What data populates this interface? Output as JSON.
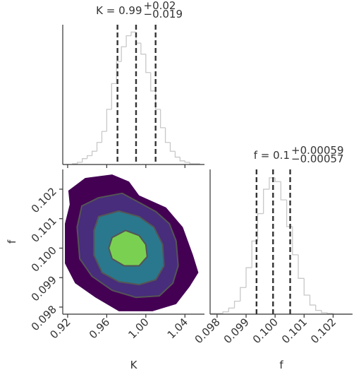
{
  "chart_data": [
    {
      "type": "histogram",
      "title": "K = 0.99",
      "title_upper": "+0.02",
      "title_lower": "−0.019",
      "bins": [
        0.925,
        0.93,
        0.935,
        0.94,
        0.945,
        0.95,
        0.955,
        0.96,
        0.965,
        0.97,
        0.975,
        0.98,
        0.985,
        0.99,
        0.995,
        1.0,
        1.005,
        1.01,
        1.015,
        1.02,
        1.025,
        1.03,
        1.035,
        1.04,
        1.045,
        1.05,
        1.055
      ],
      "values": [
        1,
        3,
        8,
        12,
        18,
        30,
        45,
        75,
        110,
        140,
        160,
        175,
        180,
        165,
        150,
        125,
        100,
        75,
        50,
        30,
        18,
        10,
        5,
        3,
        1,
        1
      ],
      "color": "#c8c8c8",
      "quantiles": [
        0.971,
        0.99,
        1.01
      ],
      "quantile_color": "#333333",
      "xlim": [
        0.915,
        1.06
      ],
      "ylim": [
        0,
        190
      ],
      "xticks": [
        0.92,
        0.96,
        1,
        1.04
      ]
    },
    {
      "type": "contour",
      "xlabel": "K",
      "ylabel": "f",
      "xlim": [
        0.915,
        1.06
      ],
      "ylim": [
        0.09776,
        0.10267
      ],
      "xticks": [
        0.92,
        0.96,
        {
          "value": 1,
          "label": "1.00"
        },
        1.04
      ],
      "yticks": [
        0.098,
        0.099,
        {
          "value": 0.1,
          "label": "0.100"
        },
        0.101,
        0.102
      ],
      "line_color": "#555555",
      "levels": [
        {
          "color": "#440154",
          "x": [
            0.9207,
            0.9379,
            0.9655,
            0.9828,
            0.9931,
            1.0207,
            1.0379,
            1.0483,
            1.0538,
            1.0448,
            1.031,
            1.0069,
            0.9724,
            0.9483,
            0.9276,
            0.9172,
            0.9172,
            0.9221
          ],
          "y": [
            0.10195,
            0.10238,
            0.1025,
            0.10226,
            0.10179,
            0.10138,
            0.10071,
            0.09976,
            0.09917,
            0.09869,
            0.0981,
            0.09786,
            0.09786,
            0.09833,
            0.09881,
            0.09948,
            0.10083,
            0.10148
          ]
        },
        {
          "color": "#472d7b",
          "x": [
            0.9345,
            0.9517,
            0.9759,
            0.9931,
            1.0103,
            1.0241,
            1.031,
            1.0331,
            1.0276,
            1.0138,
            0.9897,
            0.9655,
            0.9448,
            0.9324,
            0.9297
          ],
          "y": [
            0.10143,
            0.10171,
            0.10186,
            0.10155,
            0.10124,
            0.10083,
            0.10024,
            0.0994,
            0.09881,
            0.09838,
            0.09833,
            0.09857,
            0.09905,
            0.09964,
            0.10071
          ]
        },
        {
          "color": "#2a788e",
          "x": [
            0.9517,
            0.9724,
            0.9931,
            1.0083,
            1.0172,
            1.0186,
            1.0103,
            0.9931,
            0.9724,
            0.9552,
            0.9469,
            0.9469
          ],
          "y": [
            0.10107,
            0.10126,
            0.10107,
            0.10071,
            0.10012,
            0.0994,
            0.09893,
            0.09876,
            0.09886,
            0.09917,
            0.09976,
            0.1006
          ]
        },
        {
          "color": "#7ad151",
          "x": [
            0.9655,
            0.9793,
            0.9931,
            1.0,
            1.0014,
            0.9931,
            0.9779,
            0.9655,
            0.9621
          ],
          "y": [
            0.10036,
            0.1006,
            0.10043,
            0.10012,
            0.09971,
            0.0994,
            0.0994,
            0.09964,
            0.1
          ]
        }
      ]
    },
    {
      "type": "histogram",
      "title": "f = 0.1",
      "title_upper": "+0.00059",
      "title_lower": "−0.00057",
      "xlabel": "f",
      "bins": [
        0.0978,
        0.098,
        0.0982,
        0.0984,
        0.0986,
        0.0988,
        0.099,
        0.0992,
        0.0994,
        0.0996,
        0.0998,
        0.1,
        0.1002,
        0.1004,
        0.1006,
        0.1008,
        0.101,
        0.1012,
        0.1014,
        0.1016,
        0.1018,
        0.102,
        0.1022,
        0.1024,
        0.1026
      ],
      "values": [
        1,
        1,
        3,
        8,
        17,
        35,
        61,
        96,
        132,
        164,
        179,
        174,
        150,
        115,
        78,
        47,
        25,
        12,
        5,
        2,
        1,
        0,
        0,
        0
      ],
      "color": "#c8c8c8",
      "quantiles": [
        0.09936,
        0.09993,
        0.10052
      ],
      "quantile_color": "#333333",
      "xlim": [
        0.09776,
        0.10267
      ],
      "ylim": [
        0,
        190
      ],
      "xticks": [
        0.098,
        0.099,
        {
          "value": 0.1,
          "label": "0.100"
        },
        0.101,
        0.102
      ]
    }
  ]
}
